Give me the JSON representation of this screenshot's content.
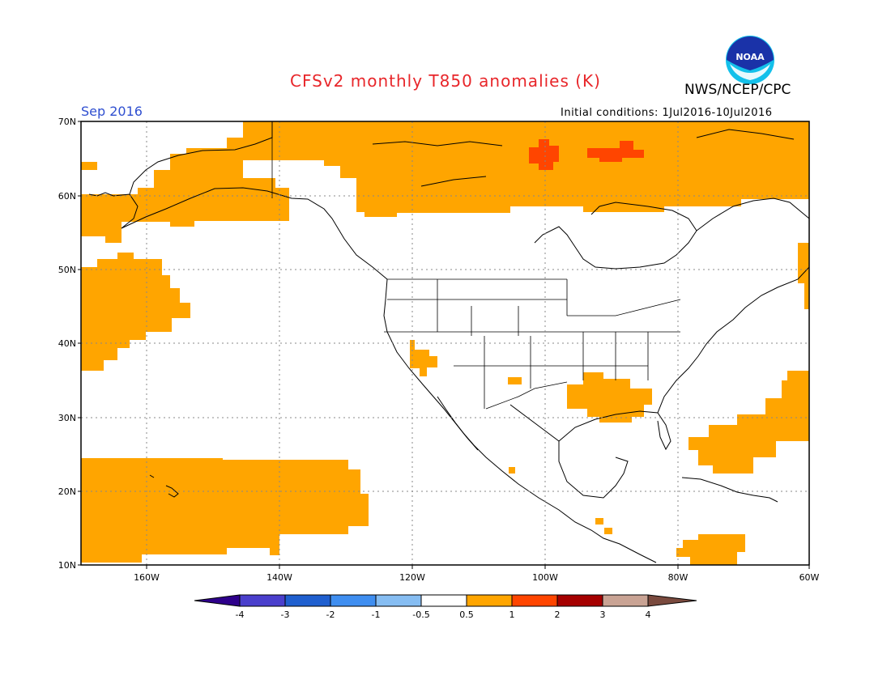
{
  "header": {
    "title": "CFSv2 monthly T850 anomalies (K)",
    "agency": "NWS/NCEP/CPC",
    "logo_text": "NOAA",
    "valid_month": "Sep 2016",
    "initial_conditions": "Initial conditions: 1Jul2016-10Jul2016"
  },
  "map": {
    "lat_labels": [
      "70N",
      "60N",
      "50N",
      "40N",
      "30N",
      "20N",
      "10N"
    ],
    "lon_labels": [
      "160W",
      "140W",
      "120W",
      "100W",
      "80W",
      "60W"
    ],
    "colors": {
      "ocean_land_bg": "#ffffff",
      "warm_0p5_1": "#ffa500",
      "warm_1_2": "#ff4500",
      "coast": "#000000",
      "grid": "#888888"
    }
  },
  "colorbar": {
    "tick_labels": [
      "-4",
      "-3",
      "-2",
      "-1",
      "-0.5",
      "0.5",
      "1",
      "2",
      "3",
      "4"
    ],
    "colors": [
      "#2e008b",
      "#4a3fcc",
      "#1f5fcf",
      "#3f8ef0",
      "#86bdf2",
      "#ffffff",
      "#ffa500",
      "#ff4500",
      "#a50000",
      "#c9a394",
      "#7a4a3e"
    ]
  }
}
